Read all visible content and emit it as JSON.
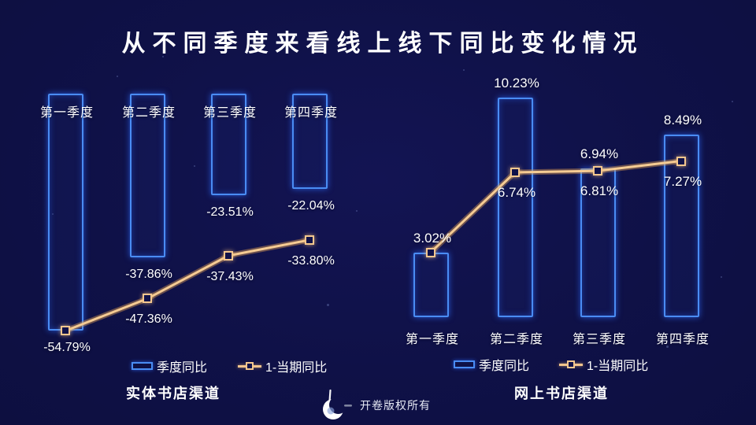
{
  "title": "从不同季度来看线上线下同比变化情况",
  "legend": {
    "bar_label": "季度同比",
    "line_label": "1-当期同比"
  },
  "footer": {
    "text": "开卷版权所有",
    "logo": "openbook-crescent-logo"
  },
  "colors": {
    "background": "#10124a",
    "bar_outline": "#4a8cf3",
    "line": "#f2c48d",
    "text": "#ffffff"
  },
  "chart_data": [
    {
      "type": "bar+line",
      "title": "实体书店渠道",
      "categories": [
        "第一季度",
        "第二季度",
        "第三季度",
        "第四季度"
      ],
      "series": [
        {
          "name": "季度同比",
          "kind": "bar",
          "values": [
            -54.79,
            -37.86,
            -23.51,
            -22.04
          ],
          "labels": [
            "-54.79%",
            "-37.86%",
            "-23.51%",
            "-22.04%"
          ]
        },
        {
          "name": "1-当期同比",
          "kind": "line",
          "values": [
            -54.79,
            -47.36,
            -37.43,
            -33.8
          ],
          "labels": [
            "",
            "-47.36%",
            "-37.43%",
            "-33.80%"
          ]
        }
      ],
      "ylim": [
        -60,
        0
      ],
      "value_suffix": "%",
      "grid": false,
      "legend_position": "bottom"
    },
    {
      "type": "bar+line",
      "title": "网上书店渠道",
      "categories": [
        "第一季度",
        "第二季度",
        "第三季度",
        "第四季度"
      ],
      "series": [
        {
          "name": "季度同比",
          "kind": "bar",
          "values": [
            3.02,
            10.23,
            6.94,
            8.49
          ],
          "labels": [
            "3.02%",
            "10.23%",
            "6.94%",
            "8.49%"
          ]
        },
        {
          "name": "1-当期同比",
          "kind": "line",
          "values": [
            3.02,
            6.74,
            6.81,
            7.27
          ],
          "labels": [
            "",
            "6.74%",
            "6.81%",
            "7.27%"
          ]
        }
      ],
      "ylim": [
        0,
        11
      ],
      "value_suffix": "%",
      "grid": false,
      "legend_position": "bottom"
    }
  ]
}
